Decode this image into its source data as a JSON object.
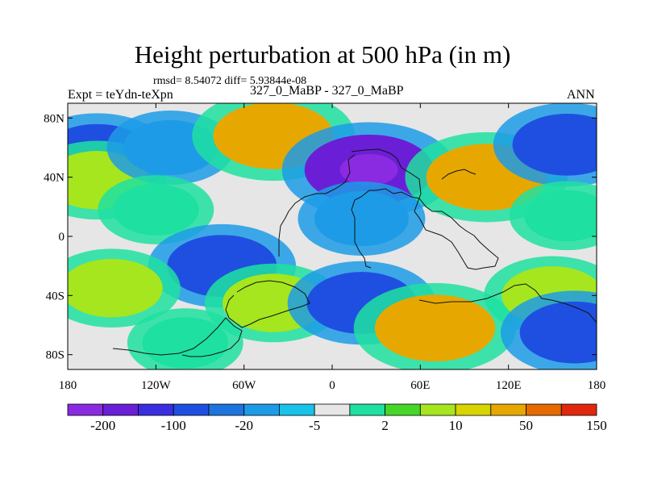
{
  "header": {
    "title": "Height perturbation at 500 hPa (in m)",
    "stats": "rmsd= 8.54072 diff= 5.93844e-08",
    "left_label": "Expt = teYdn-teXpn",
    "center_label": "327_0_MaBP - 327_0_MaBP",
    "right_label": "ANN"
  },
  "chart_data": {
    "type": "heatmap",
    "title": "Height perturbation at 500 hPa (in m)",
    "xlabel": "",
    "ylabel": "",
    "xlim": [
      -180,
      180
    ],
    "ylim": [
      -90,
      90
    ],
    "x_ticks": [
      {
        "value": -180,
        "label": "180"
      },
      {
        "value": -120,
        "label": "120W"
      },
      {
        "value": -60,
        "label": "60W"
      },
      {
        "value": 0,
        "label": "0"
      },
      {
        "value": 60,
        "label": "60E"
      },
      {
        "value": 120,
        "label": "120E"
      },
      {
        "value": 180,
        "label": "180"
      }
    ],
    "y_ticks": [
      {
        "value": 80,
        "label": "80N"
      },
      {
        "value": 40,
        "label": "40N"
      },
      {
        "value": 0,
        "label": "0"
      },
      {
        "value": -40,
        "label": "40S"
      },
      {
        "value": -80,
        "label": "80S"
      }
    ],
    "colorbar": {
      "colors": [
        "#8a2be2",
        "#6a1fd6",
        "#3a2ee0",
        "#1f4fe0",
        "#1e74dd",
        "#1d9be6",
        "#19c2e8",
        "#e6e6e6",
        "#1ee0a0",
        "#45d628",
        "#a6e61e",
        "#d8d400",
        "#e6a800",
        "#e66a00",
        "#e02810"
      ],
      "labels": [
        "-200",
        "-100",
        "-20",
        "-5",
        "2",
        "10",
        "50",
        "150"
      ]
    },
    "fields": [
      {
        "lon": -160,
        "lat": 55,
        "value": -20
      },
      {
        "lon": -160,
        "lat": 38,
        "value": 10
      },
      {
        "lon": -110,
        "lat": 60,
        "value": -5
      },
      {
        "lon": -120,
        "lat": 18,
        "value": 2
      },
      {
        "lon": -40,
        "lat": 68,
        "value": 50
      },
      {
        "lon": 25,
        "lat": 45,
        "value": -100
      },
      {
        "lon": 20,
        "lat": 12,
        "value": -5
      },
      {
        "lon": 105,
        "lat": 40,
        "value": 50
      },
      {
        "lon": 160,
        "lat": 62,
        "value": -20
      },
      {
        "lon": 160,
        "lat": 14,
        "value": 2
      },
      {
        "lon": -75,
        "lat": -20,
        "value": -20
      },
      {
        "lon": -150,
        "lat": -35,
        "value": 10
      },
      {
        "lon": -40,
        "lat": -45,
        "value": 10
      },
      {
        "lon": 20,
        "lat": -45,
        "value": -20
      },
      {
        "lon": 70,
        "lat": -62,
        "value": 50
      },
      {
        "lon": 150,
        "lat": -40,
        "value": 10
      },
      {
        "lon": 165,
        "lat": -65,
        "value": -20
      },
      {
        "lon": -100,
        "lat": -72,
        "value": 2
      }
    ]
  }
}
